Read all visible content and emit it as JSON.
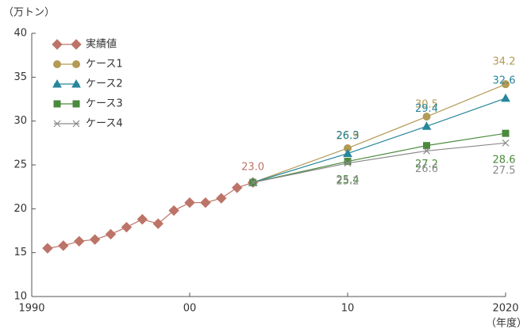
{
  "chart_data": {
    "type": "line",
    "y_label": "（万トン）",
    "x_label": "（年度）",
    "xlim": [
      1990,
      2020
    ],
    "xticks": [
      1990,
      {
        "value": 2000,
        "label": "00"
      },
      {
        "value": 2010,
        "label": "10"
      },
      2020
    ],
    "ylim": [
      10,
      40
    ],
    "yticks": [
      10,
      15,
      20,
      25,
      30,
      35,
      40
    ],
    "grid": false,
    "legend": "upper left",
    "series": [
      {
        "name": "実績値",
        "color": "#bd7468",
        "marker": "diamond",
        "x": [
          1991,
          1992,
          1993,
          1994,
          1995,
          1996,
          1997,
          1998,
          1999,
          2000,
          2001,
          2002,
          2003,
          2004
        ],
        "values": [
          15.5,
          15.8,
          16.3,
          16.5,
          17.1,
          17.9,
          18.8,
          18.3,
          19.8,
          20.7,
          20.7,
          21.2,
          22.4,
          23.0
        ],
        "value_labels": [
          null,
          null,
          null,
          null,
          null,
          null,
          null,
          null,
          null,
          null,
          null,
          null,
          null,
          "23.0"
        ]
      },
      {
        "name": "ケース1",
        "color": "#b39a55",
        "marker": "circle",
        "x": [
          2004,
          2010,
          2015,
          2020
        ],
        "values": [
          23.0,
          26.9,
          30.5,
          34.2
        ],
        "value_labels": [
          null,
          "26.9",
          "30.5",
          "34.2"
        ]
      },
      {
        "name": "ケース2",
        "color": "#27869c",
        "marker": "triangle",
        "x": [
          2004,
          2010,
          2015,
          2020
        ],
        "values": [
          23.0,
          26.3,
          29.4,
          32.6
        ],
        "value_labels": [
          null,
          "26.3",
          "29.4",
          "32.6"
        ]
      },
      {
        "name": "ケース3",
        "color": "#4a8a3c",
        "marker": "square",
        "x": [
          2004,
          2010,
          2015,
          2020
        ],
        "values": [
          23.0,
          25.4,
          27.2,
          28.6
        ],
        "value_labels": [
          null,
          "25.4",
          "27.2",
          "28.6"
        ]
      },
      {
        "name": "ケース4",
        "color": "#8a8a8a",
        "marker": "cross",
        "x": [
          2004,
          2010,
          2015,
          2020
        ],
        "values": [
          23.0,
          25.2,
          26.6,
          27.5
        ],
        "value_labels": [
          null,
          "25.2",
          "26.6",
          "27.5"
        ]
      }
    ]
  }
}
